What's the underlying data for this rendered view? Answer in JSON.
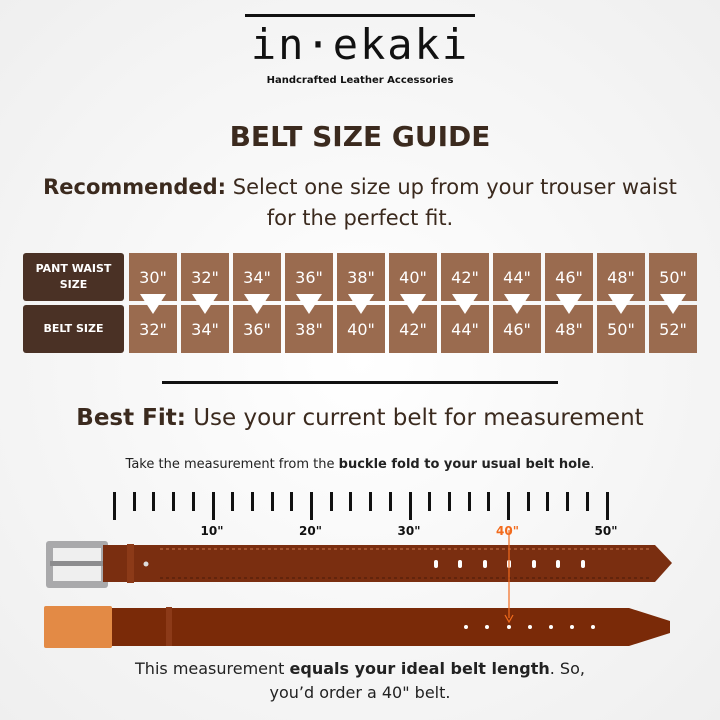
{
  "brand": {
    "logo": "in·ekaki",
    "tagline": "Handcrafted Leather Accessories"
  },
  "title": "BELT SIZE GUIDE",
  "recommended": {
    "label": "Recommended:",
    "text": "Select one size up from your trouser waist for the perfect fit."
  },
  "table": {
    "row1_header": "PANT WAIST SIZE",
    "row2_header": "BELT SIZE",
    "pant_sizes": [
      "30\"",
      "32\"",
      "34\"",
      "36\"",
      "38\"",
      "40\"",
      "42\"",
      "44\"",
      "46\"",
      "48\"",
      "50\""
    ],
    "belt_sizes": [
      "32\"",
      "34\"",
      "36\"",
      "38\"",
      "40\"",
      "42\"",
      "44\"",
      "46\"",
      "48\"",
      "50\"",
      "52\""
    ]
  },
  "best_fit": {
    "label": "Best Fit:",
    "text": "Use your current belt for measurement"
  },
  "instruction": {
    "prefix": "Take the measurement from the ",
    "bold": "buckle fold to your usual belt hole",
    "suffix": "."
  },
  "ruler": {
    "labels": [
      "10\"",
      "20\"",
      "30\"",
      "40\"",
      "50\""
    ],
    "highlight": "40\"",
    "highlight_color": "#f26b1d"
  },
  "conclusion": {
    "prefix": "This measurement ",
    "bold": "equals your ideal belt length",
    "suffix": ". So,",
    "line2": "you’d order a 40\" belt."
  },
  "colors": {
    "dark_brown": "#4a3125",
    "cell_brown": "#9a6b4f",
    "belt_brown": "#7a2e10",
    "accent": "#f26b1d"
  }
}
